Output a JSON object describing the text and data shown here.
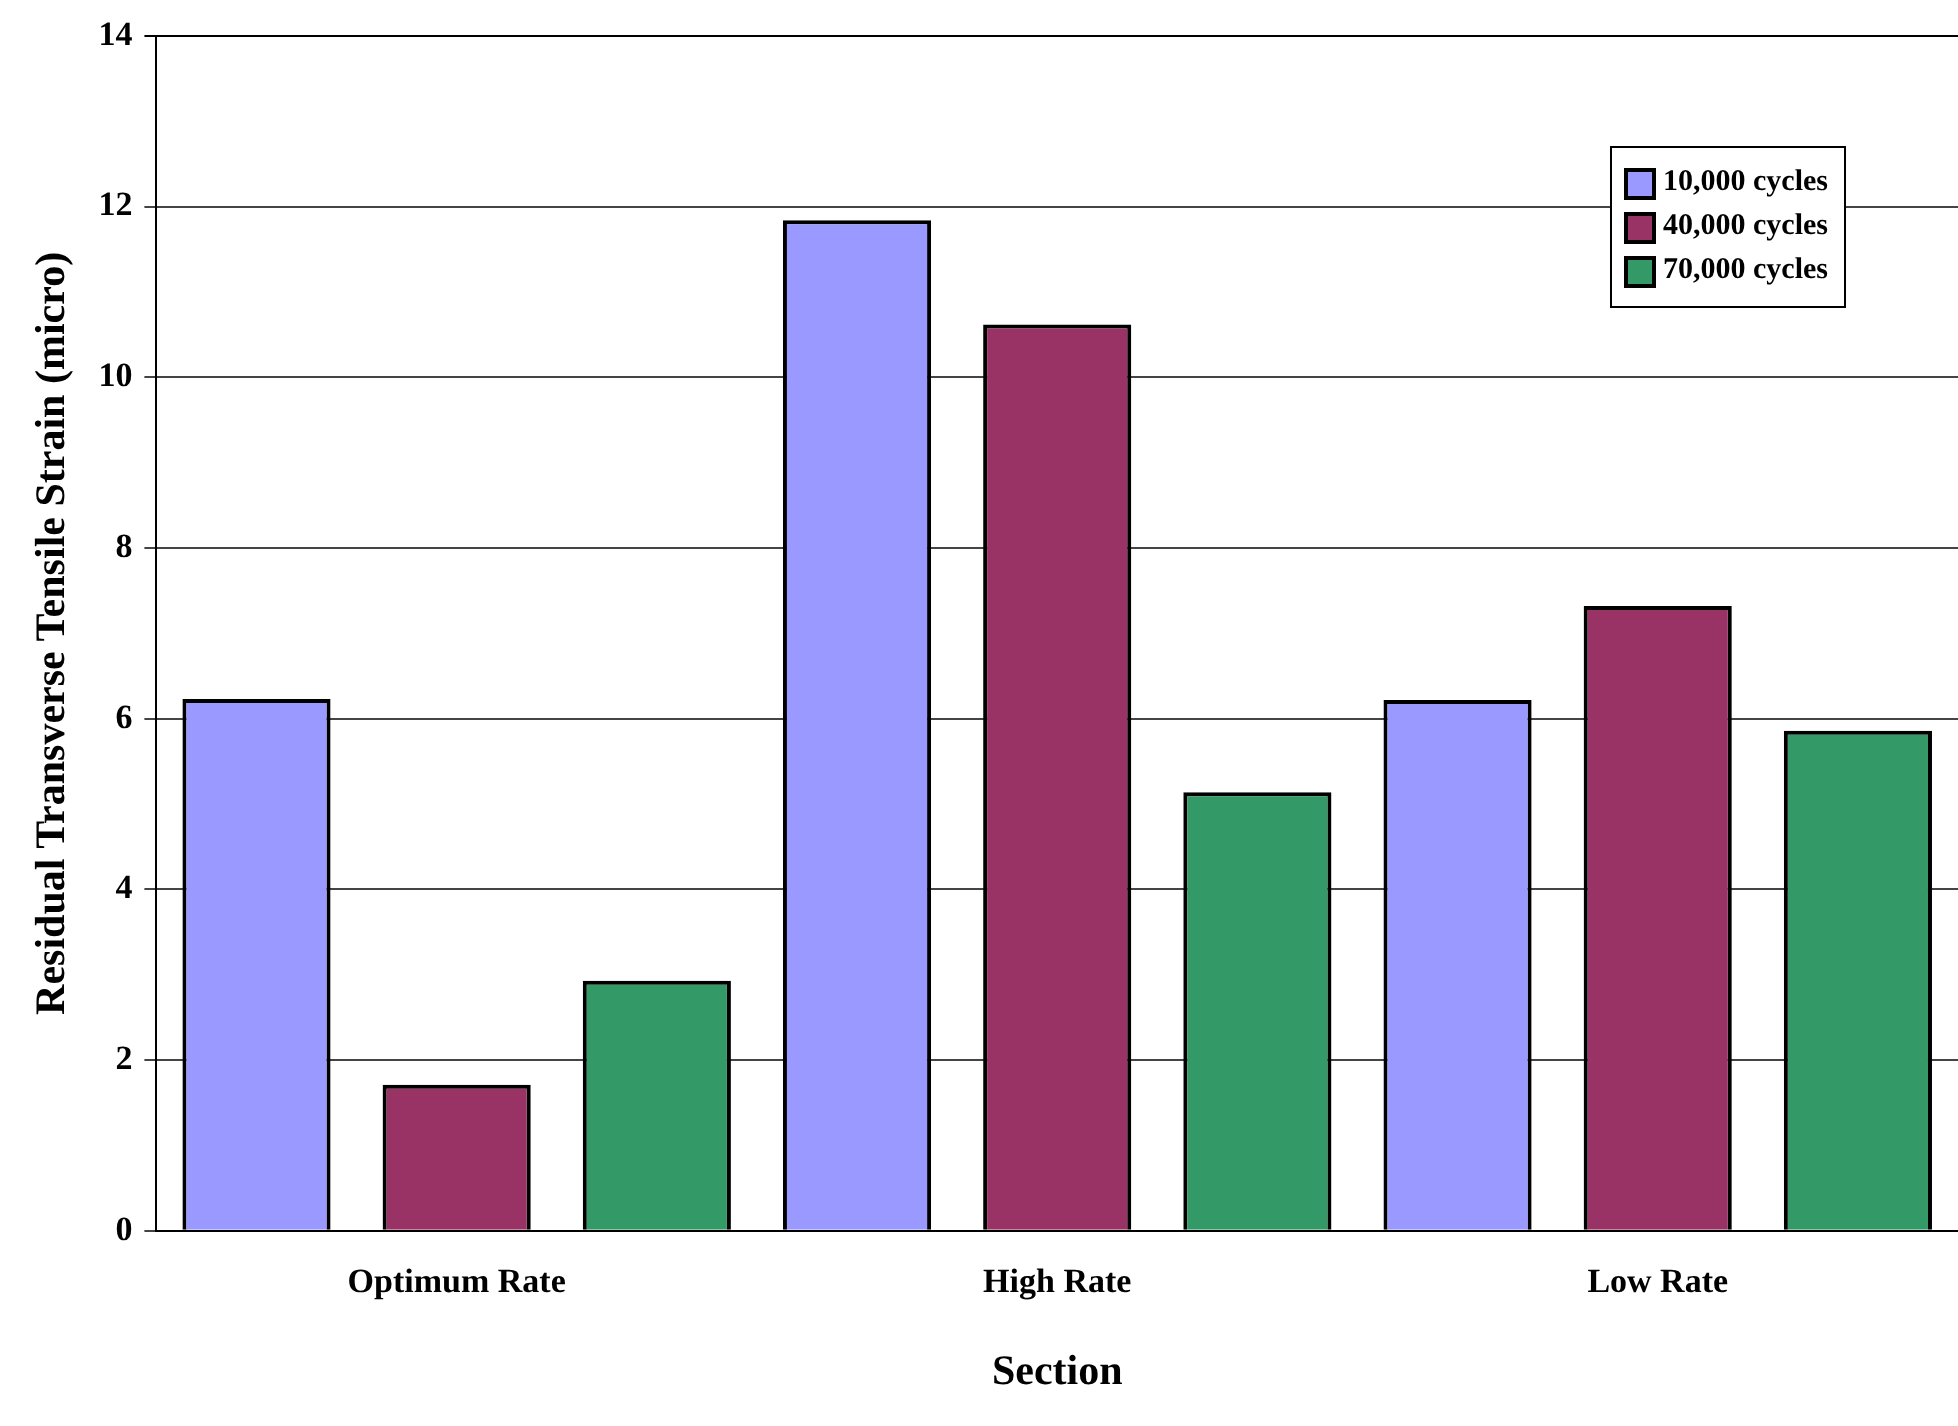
{
  "chart_data": {
    "type": "bar",
    "xlabel": "Section",
    "ylabel": "Residual Transverse Tensile Strain (micro)",
    "categories": [
      "Optimum Rate",
      "High Rate",
      "Low Rate"
    ],
    "series": [
      {
        "name": "10,000 cycles",
        "color": "#9999ff",
        "values": [
          6.23,
          11.84,
          6.22
        ]
      },
      {
        "name": "40,000 cycles",
        "color": "#993366",
        "values": [
          1.71,
          10.62,
          7.32
        ]
      },
      {
        "name": "70,000 cycles",
        "color": "#339966",
        "values": [
          2.93,
          5.14,
          5.86
        ]
      }
    ],
    "ylim": [
      0,
      14
    ],
    "yticks": [
      0,
      2,
      4,
      6,
      8,
      10,
      12,
      14
    ],
    "grid": "y",
    "legend": "top right"
  }
}
